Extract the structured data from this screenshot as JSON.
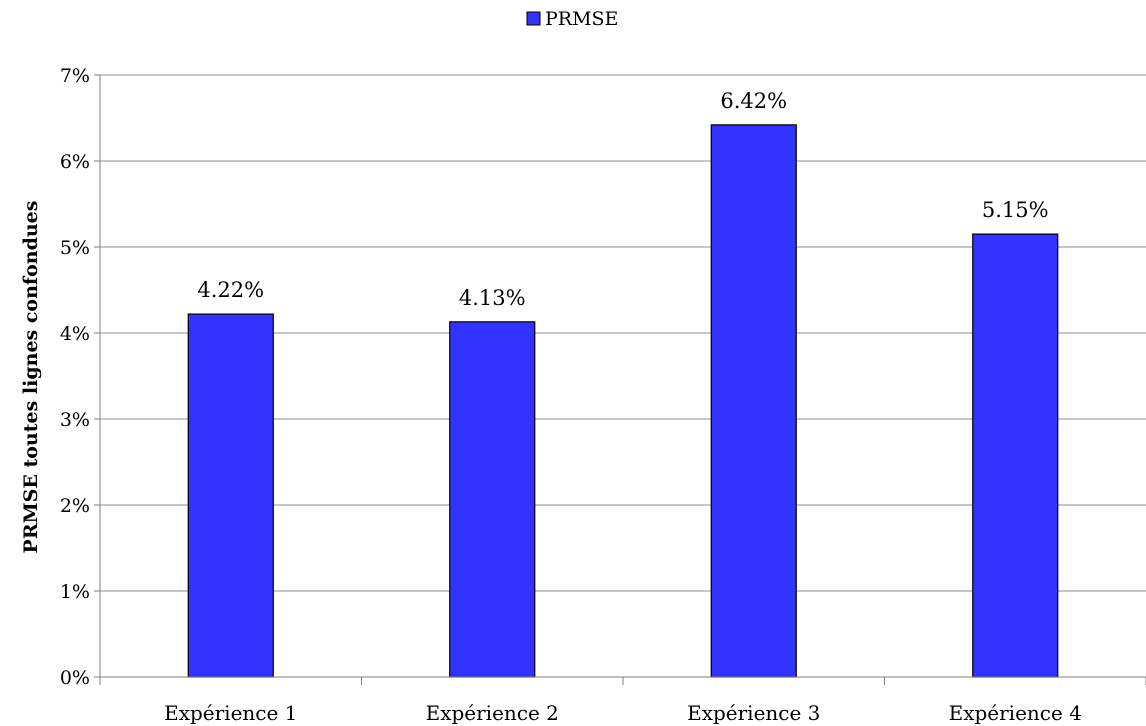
{
  "chart_data": {
    "type": "bar",
    "categories": [
      "Expérience 1",
      "Expérience 2",
      "Expérience 3",
      "Expérience 4"
    ],
    "series": [
      {
        "name": "PRMSE",
        "values": [
          4.22,
          4.13,
          6.42,
          5.15
        ],
        "labels": [
          "4.22%",
          "4.13%",
          "6.42%",
          "5.15%"
        ],
        "color": "#3333ff"
      }
    ],
    "title": "",
    "xlabel": "",
    "ylabel": "PRMSE toutes lignes confondues",
    "ylim": [
      0,
      7
    ],
    "yticks": [
      0,
      1,
      2,
      3,
      4,
      5,
      6,
      7
    ],
    "ytick_labels": [
      "0%",
      "1%",
      "2%",
      "3%",
      "4%",
      "5%",
      "6%",
      "7%"
    ],
    "grid": true,
    "legend": "top-center"
  }
}
